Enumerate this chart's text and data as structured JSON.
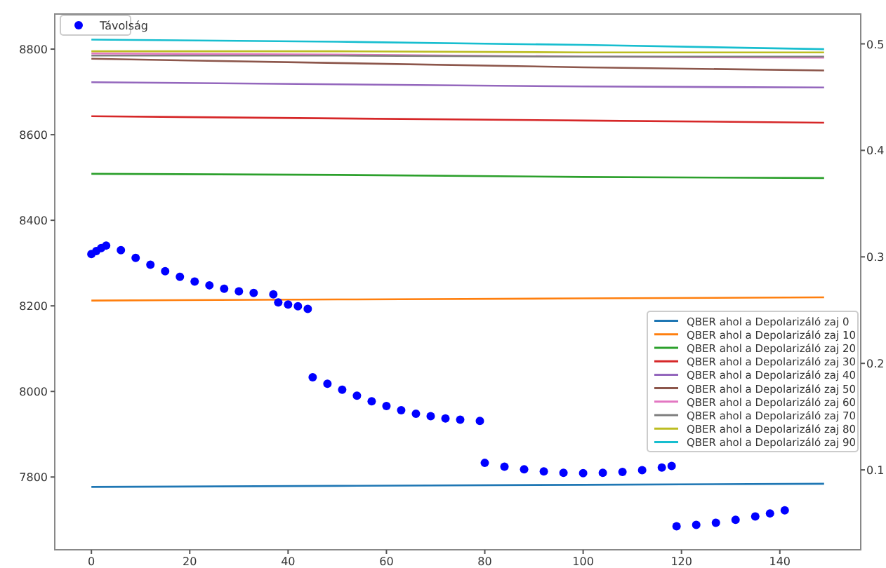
{
  "chart_data": {
    "type": "line",
    "xlim": [
      -7.45,
      156.45
    ],
    "xticks": [
      0,
      20,
      40,
      60,
      80,
      100,
      120,
      140
    ],
    "ylim": [
      7630,
      8882
    ],
    "yticks": [
      7800,
      8000,
      8200,
      8400,
      8600,
      8800
    ],
    "y2lim": [
      0.025,
      0.528
    ],
    "y2ticks": [
      0.1,
      0.2,
      0.3,
      0.4,
      0.5
    ],
    "legend": "right",
    "grid": false,
    "series": [
      {
        "name": "Távolság",
        "type": "scatter",
        "marker": "circle",
        "color": "#0000ff",
        "x": [
          0,
          1,
          2,
          3,
          6,
          9,
          12,
          15,
          18,
          21,
          24,
          27,
          30,
          33,
          37,
          38,
          40,
          42,
          44,
          45,
          48,
          51,
          54,
          57,
          60,
          63,
          66,
          69,
          72,
          75,
          79,
          80,
          84,
          88,
          92,
          96,
          100,
          104,
          108,
          112,
          116,
          118,
          119,
          123,
          127,
          131,
          135,
          138,
          141
        ],
        "values": [
          8321,
          8328,
          8335,
          8341,
          8330,
          8312,
          8296,
          8281,
          8268,
          8257,
          8248,
          8240,
          8234,
          8230,
          8227,
          8208,
          8203,
          8199,
          8193,
          8033,
          8018,
          8004,
          7990,
          7977,
          7966,
          7956,
          7948,
          7942,
          7937,
          7934,
          7931,
          7833,
          7824,
          7818,
          7813,
          7810,
          7809,
          7810,
          7812,
          7816,
          7822,
          7826,
          7685,
          7688,
          7693,
          7700,
          7708,
          7715,
          7722
        ]
      },
      {
        "name": "QBER ahol a Depolarizáló zaj 0",
        "axis": "y2",
        "color": "#1f77b4",
        "x": [
          0,
          50,
          100,
          149
        ],
        "values": [
          0.084,
          0.085,
          0.086,
          0.087
        ]
      },
      {
        "name": "QBER ahol a Depolarizáló zaj 10",
        "axis": "y2",
        "color": "#ff7f0e",
        "x": [
          0,
          50,
          100,
          149
        ],
        "values": [
          0.259,
          0.26,
          0.261,
          0.262
        ]
      },
      {
        "name": "QBER ahol a Depolarizáló zaj 20",
        "axis": "y2",
        "color": "#2ca02c",
        "x": [
          0,
          50,
          100,
          149
        ],
        "values": [
          0.378,
          0.377,
          0.375,
          0.374
        ]
      },
      {
        "name": "QBER ahol a Depolarizáló zaj 30",
        "axis": "y2",
        "color": "#d62728",
        "x": [
          0,
          50,
          100,
          149
        ],
        "values": [
          0.432,
          0.43,
          0.428,
          0.426
        ]
      },
      {
        "name": "QBER ahol a Depolarizáló zaj 40",
        "axis": "y2",
        "color": "#9467bd",
        "x": [
          0,
          50,
          100,
          149
        ],
        "values": [
          0.464,
          0.462,
          0.46,
          0.459
        ]
      },
      {
        "name": "QBER ahol a Depolarizáló zaj 50",
        "axis": "y2",
        "color": "#8c564b",
        "x": [
          0,
          50,
          100,
          149
        ],
        "values": [
          0.486,
          0.482,
          0.478,
          0.475
        ]
      },
      {
        "name": "QBER ahol a Depolarizáló zaj 60",
        "axis": "y2",
        "color": "#e377c2",
        "x": [
          0,
          50,
          100,
          149
        ],
        "values": [
          0.491,
          0.49,
          0.488,
          0.487
        ]
      },
      {
        "name": "QBER ahol a Depolarizáló zaj 70",
        "axis": "y2",
        "color": "#7f7f7f",
        "x": [
          0,
          50,
          100,
          149
        ],
        "values": [
          0.489,
          0.489,
          0.488,
          0.488
        ]
      },
      {
        "name": "QBER ahol a Depolarizáló zaj 80",
        "axis": "y2",
        "color": "#bcbd22",
        "x": [
          0,
          50,
          100,
          149
        ],
        "values": [
          0.493,
          0.493,
          0.492,
          0.492
        ]
      },
      {
        "name": "QBER ahol a Depolarizáló zaj 90",
        "axis": "y2",
        "color": "#17becf",
        "x": [
          0,
          50,
          100,
          149
        ],
        "values": [
          0.504,
          0.502,
          0.499,
          0.495
        ]
      }
    ]
  }
}
